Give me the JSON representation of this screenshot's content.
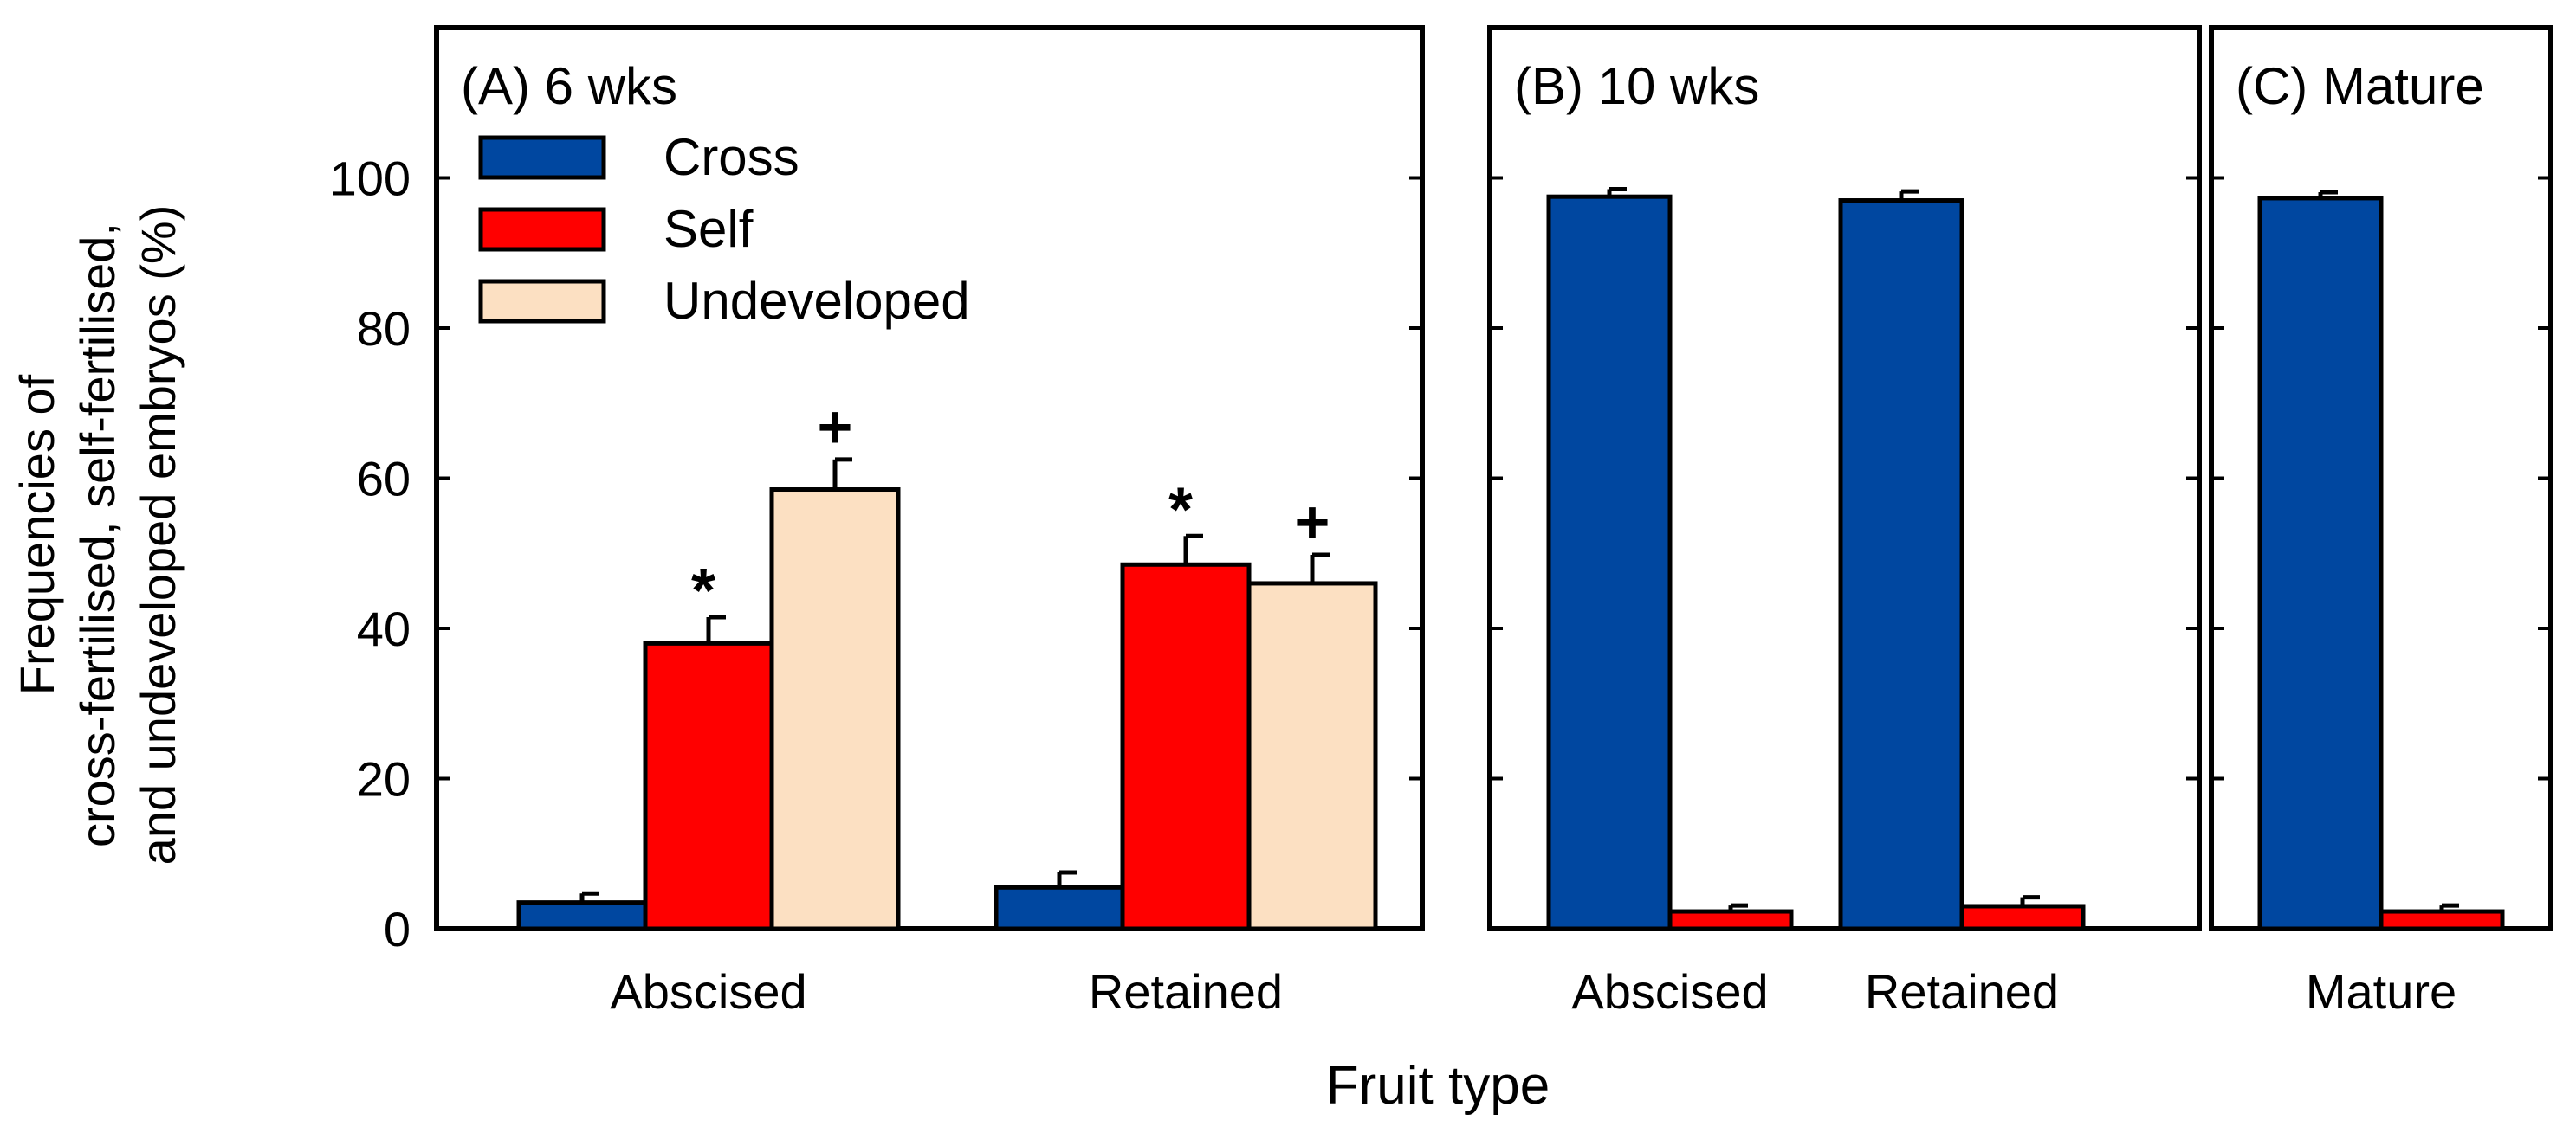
{
  "chart_data": {
    "type": "bar",
    "ylabel_lines": [
      "Frequencies of",
      "cross-fertilised, self-fertilised,",
      "and undeveloped embryos (%)"
    ],
    "xlabel": "Fruit type",
    "ylim": [
      0,
      120
    ],
    "yticks": [
      "0",
      "20",
      "40",
      "60",
      "80",
      "100"
    ],
    "grid": false,
    "legend": {
      "placement": "top-left of panel A",
      "entries": [
        {
          "name": "Cross",
          "color": "#0047A0"
        },
        {
          "name": "Self",
          "color": "#FF0000"
        },
        {
          "name": "Undeveloped",
          "color": "#FCE0C2"
        }
      ]
    },
    "panels": [
      {
        "label": "(A) 6 wks",
        "categories": [
          "Abscised",
          "Retained"
        ],
        "series": [
          {
            "name": "Cross",
            "color": "#0047A0",
            "values": [
              3.5,
              5.5
            ],
            "errors": [
              1.2,
              2.0
            ],
            "annotations": [
              "",
              ""
            ]
          },
          {
            "name": "Self",
            "color": "#FF0000",
            "values": [
              38,
              48.5
            ],
            "errors": [
              3.5,
              3.8
            ],
            "annotations": [
              "*",
              "*"
            ]
          },
          {
            "name": "Undeveloped",
            "color": "#FCE0C2",
            "values": [
              58.5,
              46
            ],
            "errors": [
              4.0,
              3.8
            ],
            "annotations": [
              "+",
              "+"
            ]
          }
        ]
      },
      {
        "label": "(B) 10 wks",
        "categories": [
          "Abscised",
          "Retained"
        ],
        "series": [
          {
            "name": "Cross",
            "color": "#0047A0",
            "values": [
              97.5,
              97
            ],
            "errors": [
              1.0,
              1.2
            ],
            "annotations": [
              "",
              ""
            ]
          },
          {
            "name": "Self",
            "color": "#FF0000",
            "values": [
              2.3,
              3.0
            ],
            "errors": [
              0.8,
              1.2
            ],
            "annotations": [
              "",
              ""
            ]
          }
        ]
      },
      {
        "label": "(C) Mature",
        "categories": [
          "Mature"
        ],
        "series": [
          {
            "name": "Cross",
            "color": "#0047A0",
            "values": [
              97.3
            ],
            "errors": [
              0.8
            ],
            "annotations": [
              ""
            ]
          },
          {
            "name": "Self",
            "color": "#FF0000",
            "values": [
              2.3
            ],
            "errors": [
              0.8
            ],
            "annotations": [
              ""
            ]
          }
        ]
      }
    ]
  }
}
